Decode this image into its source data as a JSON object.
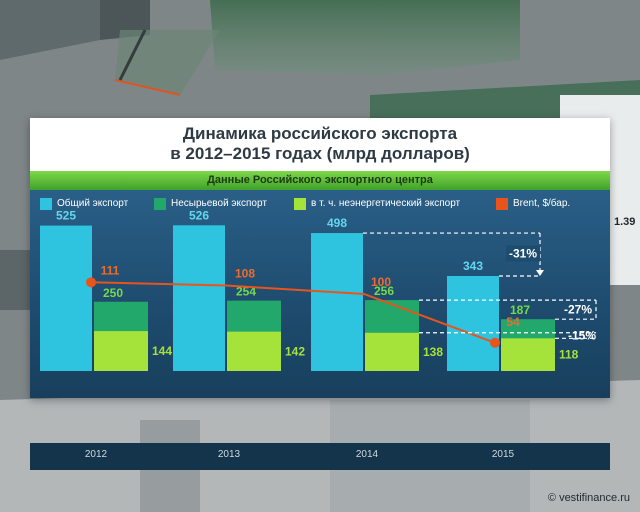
{
  "title_lines": [
    "Динамика российского экспорта",
    "в 2012–2015 годах (млрд долларов)"
  ],
  "source": "Данные Российского экспортного центра",
  "watermark": "© vestifinance.ru",
  "colors": {
    "total": "#2ec3df",
    "non_commodity": "#22a86a",
    "non_energy": "#a6e33a",
    "brent": "#e8541c"
  },
  "chart_data": {
    "type": "bar",
    "categories": [
      "2012",
      "2013",
      "2014",
      "2015"
    ],
    "series": [
      {
        "name": "Общий экспорт",
        "type": "bar",
        "values": [
          525,
          526,
          498,
          343
        ],
        "value_labels": [
          "525",
          "526",
          "498",
          "343"
        ]
      },
      {
        "name": "Несырьевой экспорт",
        "type": "bar",
        "values": [
          250,
          254,
          256,
          187
        ],
        "value_labels": [
          "250",
          "254",
          "256",
          "187"
        ]
      },
      {
        "name": "в т. ч. неэнергетический экспорт",
        "type": "bar",
        "values": [
          144,
          142,
          138,
          118
        ],
        "value_labels": [
          "144",
          "142",
          "138",
          "118"
        ]
      },
      {
        "name": "Brent, $/бар.",
        "type": "line",
        "values": [
          111,
          108,
          100,
          54
        ],
        "value_labels": [
          "111",
          "108",
          "100",
          "54"
        ]
      }
    ],
    "annotations": [
      "-31%",
      "-27%",
      "-15%"
    ],
    "legend_position": "top"
  }
}
